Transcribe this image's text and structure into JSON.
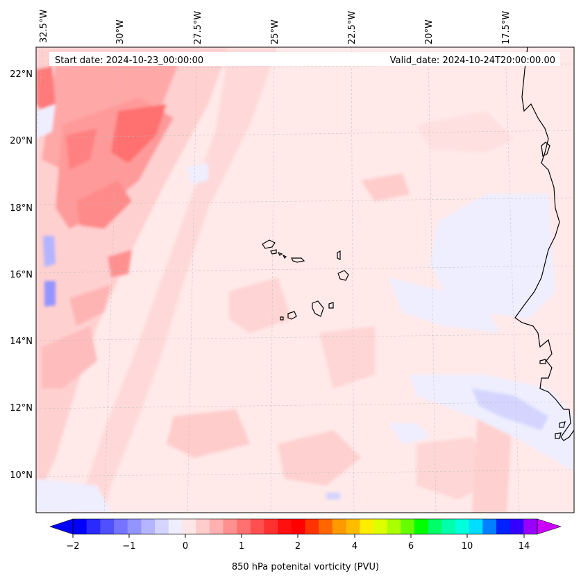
{
  "map": {
    "projection": "stereographic-like (curved graticule)",
    "extent_lon": [
      -33.0,
      -15.0
    ],
    "extent_lat": [
      8.8,
      22.8
    ],
    "lon_ticks": [
      {
        "value": -32.5,
        "label": "32.5°W"
      },
      {
        "value": -30.0,
        "label": "30°W"
      },
      {
        "value": -27.5,
        "label": "27.5°W"
      },
      {
        "value": -25.0,
        "label": "25°W"
      },
      {
        "value": -22.5,
        "label": "22.5°W"
      },
      {
        "value": -20.0,
        "label": "20°W"
      },
      {
        "value": -17.5,
        "label": "17.5°W"
      }
    ],
    "lat_ticks": [
      {
        "value": 22,
        "label": "22°N"
      },
      {
        "value": 20,
        "label": "20°N"
      },
      {
        "value": 18,
        "label": "18°N"
      },
      {
        "value": 16,
        "label": "16°N"
      },
      {
        "value": 14,
        "label": "14°N"
      },
      {
        "value": 12,
        "label": "12°N"
      },
      {
        "value": 10,
        "label": "10°N"
      }
    ],
    "gridlines": true,
    "coastline": "West African coast (Mauritania, Senegal, Guinea-Bissau) and Cape Verde islands",
    "start_date_text": "Start date: 2024-10-23_00:00:00",
    "valid_date_text": "Valid_date: 2024-10-24T20:00:00.00",
    "field": "850 hPa potential vorticity",
    "background_color": "#ffe9e9"
  },
  "colorbar": {
    "label": "850 hPa potenital vorticity (PVU)",
    "extend": "both",
    "tick_labels": [
      {
        "value": -2,
        "label": "−2"
      },
      {
        "value": -1,
        "label": "−1"
      },
      {
        "value": 0,
        "label": "0"
      },
      {
        "value": 1,
        "label": "1"
      },
      {
        "value": 2,
        "label": "2"
      },
      {
        "value": 4,
        "label": "4"
      },
      {
        "value": 6,
        "label": "6"
      },
      {
        "value": 10,
        "label": "10"
      },
      {
        "value": 14,
        "label": "14"
      }
    ],
    "colors": [
      "#0000ff",
      "#2a2aff",
      "#5050ff",
      "#7474ff",
      "#9494ff",
      "#b4b4ff",
      "#d4d4ff",
      "#eeeeff",
      "#ffe6e6",
      "#ffcccc",
      "#ffb0b0",
      "#ff9090",
      "#ff7070",
      "#ff5050",
      "#ff3030",
      "#ff1010",
      "#ff0000",
      "#ff3300",
      "#ff6600",
      "#ff9900",
      "#ffbb00",
      "#ffee00",
      "#ddff00",
      "#aaff00",
      "#66ff00",
      "#00ff00",
      "#00ff66",
      "#00ffaa",
      "#00ffdd",
      "#00ddff",
      "#0080ff",
      "#0022ff",
      "#3300ff",
      "#9900ff"
    ],
    "under_color": "#0000ff",
    "over_color": "#cc00ff"
  }
}
